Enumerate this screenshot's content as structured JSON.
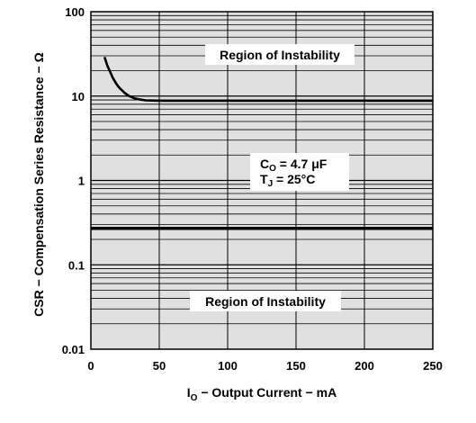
{
  "chart_data": {
    "type": "line",
    "title": "",
    "xlabel": {
      "main": "I",
      "sub": "O",
      "rest": " − Output Current − mA"
    },
    "ylabel": "CSR − Compensation Series Resistance − Ω",
    "x_ticks": [
      "0",
      "50",
      "100",
      "150",
      "200",
      "250"
    ],
    "y_ticks": [
      "0.01",
      "0.1",
      "1",
      "10",
      "100"
    ],
    "xlim": [
      0,
      250
    ],
    "ylim": [
      0.01,
      100
    ],
    "y_scale": "log",
    "grid": true,
    "colors": {
      "plot_bg": "#e0e0e0",
      "grid": "#000000",
      "line": "#000000",
      "label_box": "#ffffff"
    },
    "series": [
      {
        "role": "upper-boundary",
        "x": [
          10,
          12,
          14,
          16,
          18,
          20,
          22,
          25,
          28,
          32,
          36,
          40,
          45,
          50,
          60,
          80,
          100,
          150,
          200,
          250
        ],
        "y": [
          29,
          23,
          19.5,
          16.5,
          14.5,
          13,
          12,
          10.8,
          10,
          9.4,
          9.1,
          8.9,
          8.85,
          8.8,
          8.8,
          8.8,
          8.8,
          8.8,
          8.8,
          8.8
        ]
      },
      {
        "role": "lower-boundary",
        "x": [
          0,
          250
        ],
        "y": [
          0.27,
          0.27
        ]
      }
    ],
    "annotations": {
      "region_top": "Region of Instability",
      "region_bottom": "Region of Instability",
      "co": {
        "main": "C",
        "sub": "O",
        "rest": " = 4.7 μF"
      },
      "tj": {
        "main": "T",
        "sub": "J",
        "rest": " = 25°C"
      }
    }
  }
}
